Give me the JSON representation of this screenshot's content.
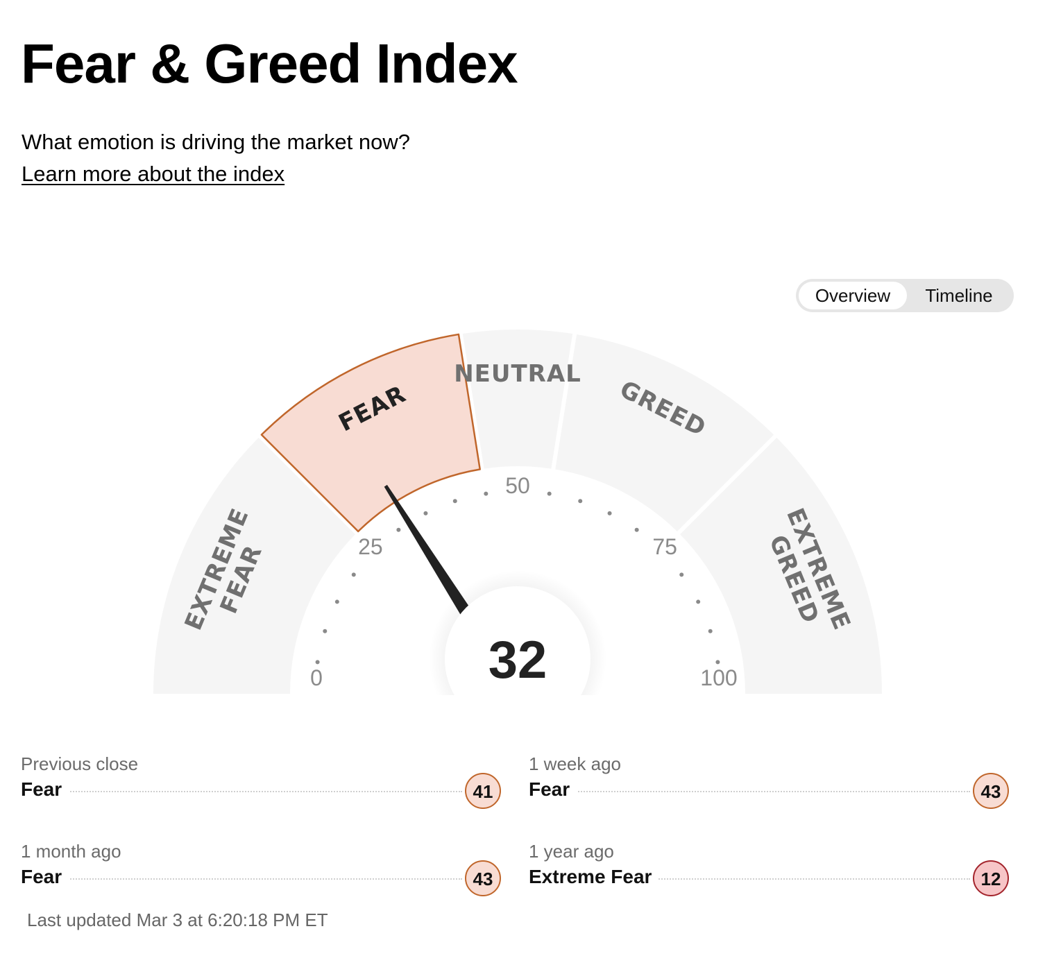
{
  "title": "Fear & Greed Index",
  "subtitle": "What emotion is driving the market now?",
  "learn_more": "Learn more about the index",
  "toggle": {
    "options": [
      "Overview",
      "Timeline"
    ],
    "selected": "Overview"
  },
  "gauge": {
    "value": 32,
    "value_text": "32",
    "min": 0,
    "max": 100,
    "active_segment": "fear",
    "segments": [
      {
        "key": "extreme-fear",
        "lines": [
          "EXTREME",
          "FEAR"
        ],
        "from": 0,
        "to": 25
      },
      {
        "key": "fear",
        "lines": [
          "FEAR"
        ],
        "from": 25,
        "to": 45
      },
      {
        "key": "neutral",
        "lines": [
          "NEUTRAL"
        ],
        "from": 45,
        "to": 55
      },
      {
        "key": "greed",
        "lines": [
          "GREED"
        ],
        "from": 55,
        "to": 75
      },
      {
        "key": "extreme-greed",
        "lines": [
          "EXTREME",
          "GREED"
        ],
        "from": 75,
        "to": 100
      }
    ],
    "ticks": [
      {
        "value": 0,
        "text": "0"
      },
      {
        "value": 25,
        "text": "25"
      },
      {
        "value": 50,
        "text": "50"
      },
      {
        "value": 75,
        "text": "75"
      },
      {
        "value": 100,
        "text": "100"
      }
    ],
    "colors": {
      "segment": "#f5f5f5",
      "active_fill": "#f8dcd3",
      "active_stroke": "#c0662b",
      "label": "#707070",
      "active_label": "#222222",
      "needle": "#222222",
      "dots": "#8a8a8a",
      "tick_label": "#8a8a8a"
    }
  },
  "history": [
    {
      "label": "Previous close",
      "rating": "Fear",
      "value": "41",
      "color": "#f8dcd3",
      "border": "#c0662b"
    },
    {
      "label": "1 week ago",
      "rating": "Fear",
      "value": "43",
      "color": "#f8dcd3",
      "border": "#c0662b"
    },
    {
      "label": "1 month ago",
      "rating": "Fear",
      "value": "43",
      "color": "#f8dcd3",
      "border": "#c0662b"
    },
    {
      "label": "1 year ago",
      "rating": "Extreme Fear",
      "value": "12",
      "color": "#f7c5c7",
      "border": "#a3242c"
    }
  ],
  "last_updated": "Last updated Mar 3 at 6:20:18 PM ET"
}
